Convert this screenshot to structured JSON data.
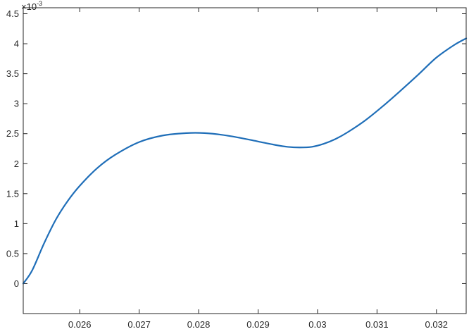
{
  "chart_data": {
    "type": "line",
    "title": "",
    "xlabel": "",
    "ylabel": "",
    "y_exponent_label": "×10",
    "y_exponent_power": "-3",
    "xlim": [
      0.02505,
      0.0325
    ],
    "ylim": [
      -0.0005,
      0.0046
    ],
    "x_ticks": [
      0.026,
      0.027,
      0.028,
      0.029,
      0.03,
      0.031,
      0.032
    ],
    "x_tick_labels": [
      "0.026",
      "0.027",
      "0.028",
      "0.029",
      "0.03",
      "0.031",
      "0.032"
    ],
    "y_ticks": [
      0,
      0.0005,
      0.001,
      0.0015,
      0.002,
      0.0025,
      0.003,
      0.0035,
      0.004,
      0.0045
    ],
    "y_tick_labels": [
      "0",
      "0.5",
      "1",
      "1.5",
      "2",
      "2.5",
      "3",
      "3.5",
      "4",
      "4.5"
    ],
    "grid": false,
    "legend": "none",
    "line_color": "#1f6eb8",
    "axis_color": "#262626",
    "series": [
      {
        "x": [
          0.02505,
          0.0252,
          0.0254,
          0.0256,
          0.0258,
          0.026,
          0.0263,
          0.0266,
          0.027,
          0.0274,
          0.0278,
          0.0281,
          0.0284,
          0.0287,
          0.029,
          0.0293,
          0.0295,
          0.0297,
          0.0299,
          0.0301,
          0.0303,
          0.0305,
          0.0308,
          0.0311,
          0.0314,
          0.0317,
          0.032,
          0.0323,
          0.0325
        ],
        "y": [
          0.0,
          0.00022,
          0.00067,
          0.00107,
          0.00138,
          0.00163,
          0.00193,
          0.00215,
          0.00236,
          0.00247,
          0.00251,
          0.00251,
          0.00248,
          0.00243,
          0.00237,
          0.00231,
          0.00228,
          0.00227,
          0.00228,
          0.00233,
          0.00241,
          0.00252,
          0.00272,
          0.00296,
          0.00322,
          0.00349,
          0.00377,
          0.00398,
          0.00409
        ]
      }
    ]
  }
}
